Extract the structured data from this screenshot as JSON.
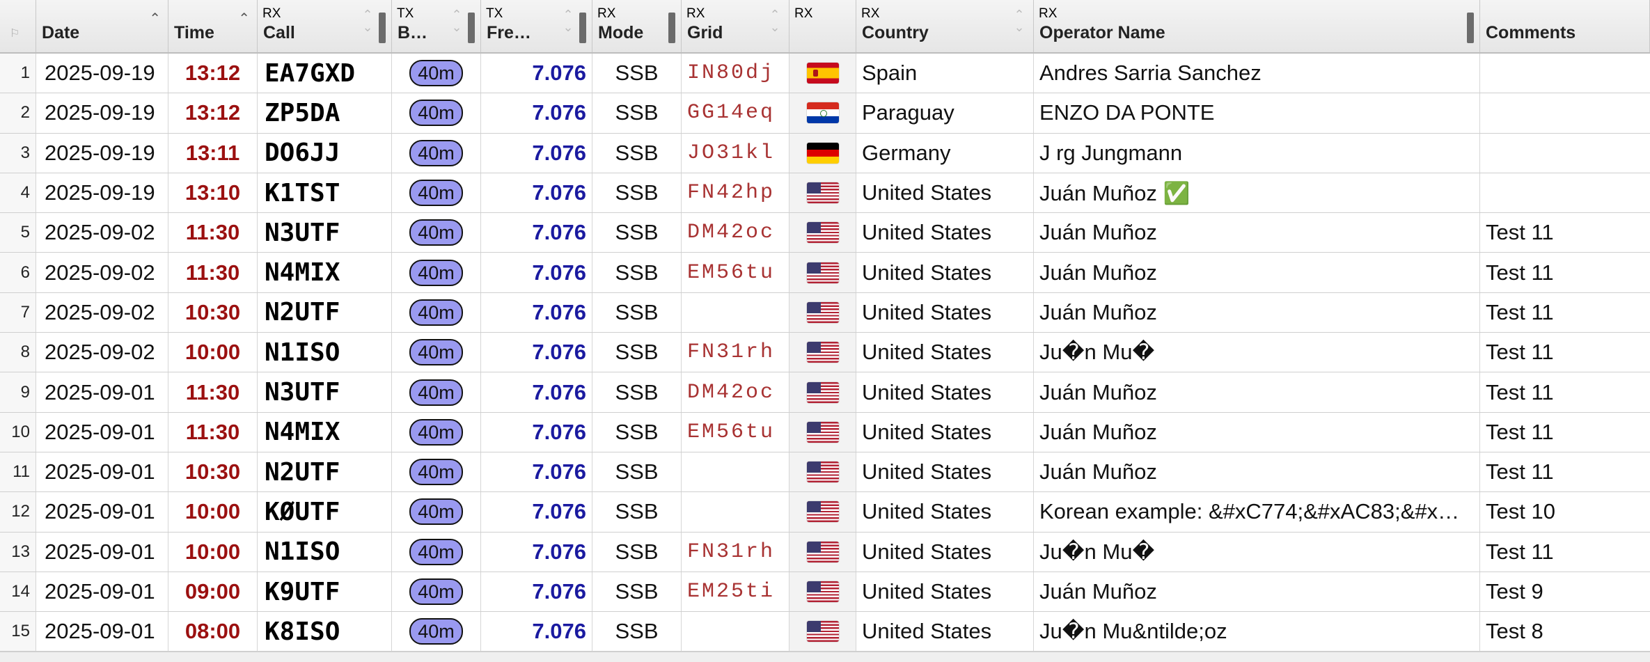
{
  "header": {
    "columns": [
      {
        "tag": "",
        "label": ""
      },
      {
        "tag": "",
        "label": "Date"
      },
      {
        "tag": "",
        "label": "Time"
      },
      {
        "tag": "RX",
        "label": "Call"
      },
      {
        "tag": "TX",
        "label": "B…"
      },
      {
        "tag": "TX",
        "label": "Fre…"
      },
      {
        "tag": "RX",
        "label": "Mode"
      },
      {
        "tag": "RX",
        "label": "Grid"
      },
      {
        "tag": "RX",
        "label": ""
      },
      {
        "tag": "RX",
        "label": "Country"
      },
      {
        "tag": "RX",
        "label": "Operator Name"
      },
      {
        "tag": "",
        "label": "Comments"
      }
    ]
  },
  "flags": {
    "Spain": "spain-flag-icon",
    "Paraguay": "paraguay-flag-icon",
    "Germany": "germany-flag-icon",
    "United States": "us-flag-icon"
  },
  "rows": [
    {
      "num": "1",
      "date": "2025-09-19",
      "time": "13:12",
      "call": "EA7GXD",
      "band": "40m",
      "freq": "7.076",
      "mode": "SSB",
      "grid": "IN80dj",
      "flag": "Spain",
      "country": "Spain",
      "operator": "Andres Sarria Sanchez",
      "comments": ""
    },
    {
      "num": "2",
      "date": "2025-09-19",
      "time": "13:12",
      "call": "ZP5DA",
      "band": "40m",
      "freq": "7.076",
      "mode": "SSB",
      "grid": "GG14eq",
      "flag": "Paraguay",
      "country": "Paraguay",
      "operator": "ENZO DA PONTE",
      "comments": ""
    },
    {
      "num": "3",
      "date": "2025-09-19",
      "time": "13:11",
      "call": "DO6JJ",
      "band": "40m",
      "freq": "7.076",
      "mode": "SSB",
      "grid": "JO31kl",
      "flag": "Germany",
      "country": "Germany",
      "operator": "J rg Jungmann",
      "comments": ""
    },
    {
      "num": "4",
      "date": "2025-09-19",
      "time": "13:10",
      "call": "K1TST",
      "band": "40m",
      "freq": "7.076",
      "mode": "SSB",
      "grid": "FN42hp",
      "flag": "United States",
      "country": "United States",
      "operator": "Juán Muñoz ✅",
      "comments": ""
    },
    {
      "num": "5",
      "date": "2025-09-02",
      "time": "11:30",
      "call": "N3UTF",
      "band": "40m",
      "freq": "7.076",
      "mode": "SSB",
      "grid": "DM42oc",
      "flag": "United States",
      "country": "United States",
      "operator": "Juán Muñoz",
      "comments": "Test 11"
    },
    {
      "num": "6",
      "date": "2025-09-02",
      "time": "11:30",
      "call": "N4MIX",
      "band": "40m",
      "freq": "7.076",
      "mode": "SSB",
      "grid": "EM56tu",
      "flag": "United States",
      "country": "United States",
      "operator": "Juán Muñoz",
      "comments": "Test 11"
    },
    {
      "num": "7",
      "date": "2025-09-02",
      "time": "10:30",
      "call": "N2UTF",
      "band": "40m",
      "freq": "7.076",
      "mode": "SSB",
      "grid": "",
      "flag": "United States",
      "country": "United States",
      "operator": "Juán Muñoz",
      "comments": "Test 11"
    },
    {
      "num": "8",
      "date": "2025-09-02",
      "time": "10:00",
      "call": "N1ISO",
      "band": "40m",
      "freq": "7.076",
      "mode": "SSB",
      "grid": "FN31rh",
      "flag": "United States",
      "country": "United States",
      "operator": "Ju�n Mu�",
      "comments": "Test 11"
    },
    {
      "num": "9",
      "date": "2025-09-01",
      "time": "11:30",
      "call": "N3UTF",
      "band": "40m",
      "freq": "7.076",
      "mode": "SSB",
      "grid": "DM42oc",
      "flag": "United States",
      "country": "United States",
      "operator": "Juán Muñoz",
      "comments": "Test 11"
    },
    {
      "num": "10",
      "date": "2025-09-01",
      "time": "11:30",
      "call": "N4MIX",
      "band": "40m",
      "freq": "7.076",
      "mode": "SSB",
      "grid": "EM56tu",
      "flag": "United States",
      "country": "United States",
      "operator": "Juán Muñoz",
      "comments": "Test 11"
    },
    {
      "num": "11",
      "date": "2025-09-01",
      "time": "10:30",
      "call": "N2UTF",
      "band": "40m",
      "freq": "7.076",
      "mode": "SSB",
      "grid": "",
      "flag": "United States",
      "country": "United States",
      "operator": "Juán Muñoz",
      "comments": "Test 11"
    },
    {
      "num": "12",
      "date": "2025-09-01",
      "time": "10:00",
      "call": "KØUTF",
      "band": "40m",
      "freq": "7.076",
      "mode": "SSB",
      "grid": "",
      "flag": "United States",
      "country": "United States",
      "operator": "Korean example: &#xC774;&#xAC83;&#x…",
      "comments": "Test 10"
    },
    {
      "num": "13",
      "date": "2025-09-01",
      "time": "10:00",
      "call": "N1ISO",
      "band": "40m",
      "freq": "7.076",
      "mode": "SSB",
      "grid": "FN31rh",
      "flag": "United States",
      "country": "United States",
      "operator": "Ju�n Mu�",
      "comments": "Test 11"
    },
    {
      "num": "14",
      "date": "2025-09-01",
      "time": "09:00",
      "call": "K9UTF",
      "band": "40m",
      "freq": "7.076",
      "mode": "SSB",
      "grid": "EM25ti",
      "flag": "United States",
      "country": "United States",
      "operator": "Juán Muñoz",
      "comments": "Test 9"
    },
    {
      "num": "15",
      "date": "2025-09-01",
      "time": "08:00",
      "call": "K8ISO",
      "band": "40m",
      "freq": "7.076",
      "mode": "SSB",
      "grid": "",
      "flag": "United States",
      "country": "United States",
      "operator": "Ju�n Mu&ntilde;oz",
      "comments": "Test 8"
    }
  ]
}
